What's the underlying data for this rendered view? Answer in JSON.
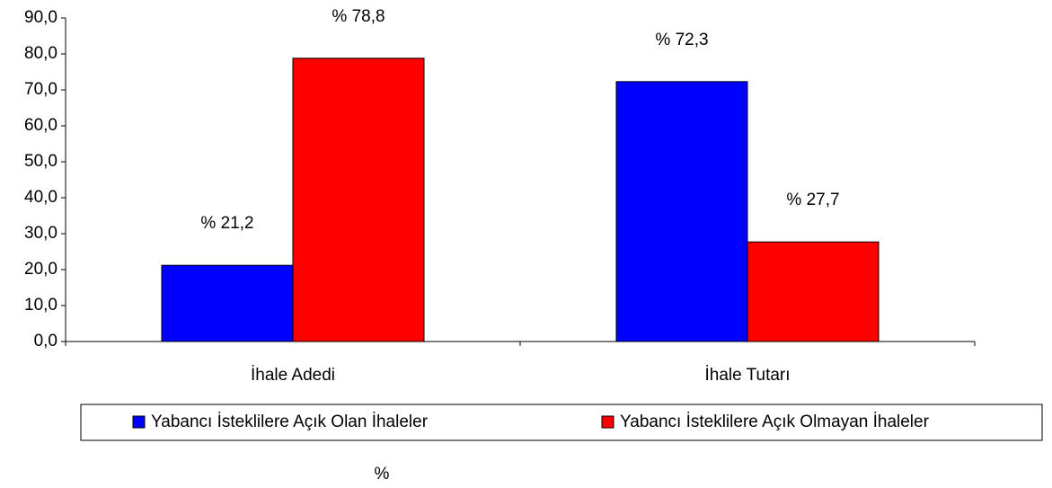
{
  "chart_data": {
    "type": "bar",
    "categories": [
      "İhale Adedi",
      "İhale Tutarı"
    ],
    "series": [
      {
        "name": "Yabancı İsteklilere Açık Olan İhaleler",
        "color": "#0000ff",
        "values": [
          21.2,
          72.3
        ],
        "value_labels": [
          "% 21,2",
          "% 72,3"
        ]
      },
      {
        "name": "Yabancı İsteklilere Açık Olmayan İhaleler",
        "color": "#ff0000",
        "values": [
          78.8,
          27.7
        ],
        "value_labels": [
          "% 78,8",
          "% 27,7"
        ]
      }
    ],
    "ylim": [
      0,
      90
    ],
    "yticks": [
      {
        "value": 0,
        "label": "0,0"
      },
      {
        "value": 10,
        "label": "10,0"
      },
      {
        "value": 20,
        "label": "20,0"
      },
      {
        "value": 30,
        "label": "30,0"
      },
      {
        "value": 40,
        "label": "40,0"
      },
      {
        "value": 50,
        "label": "50,0"
      },
      {
        "value": 60,
        "label": "60,0"
      },
      {
        "value": 70,
        "label": "70,0"
      },
      {
        "value": 80,
        "label": "80,0"
      },
      {
        "value": 90,
        "label": "90,0"
      }
    ],
    "ylabel": "%",
    "legend": "bottom"
  }
}
